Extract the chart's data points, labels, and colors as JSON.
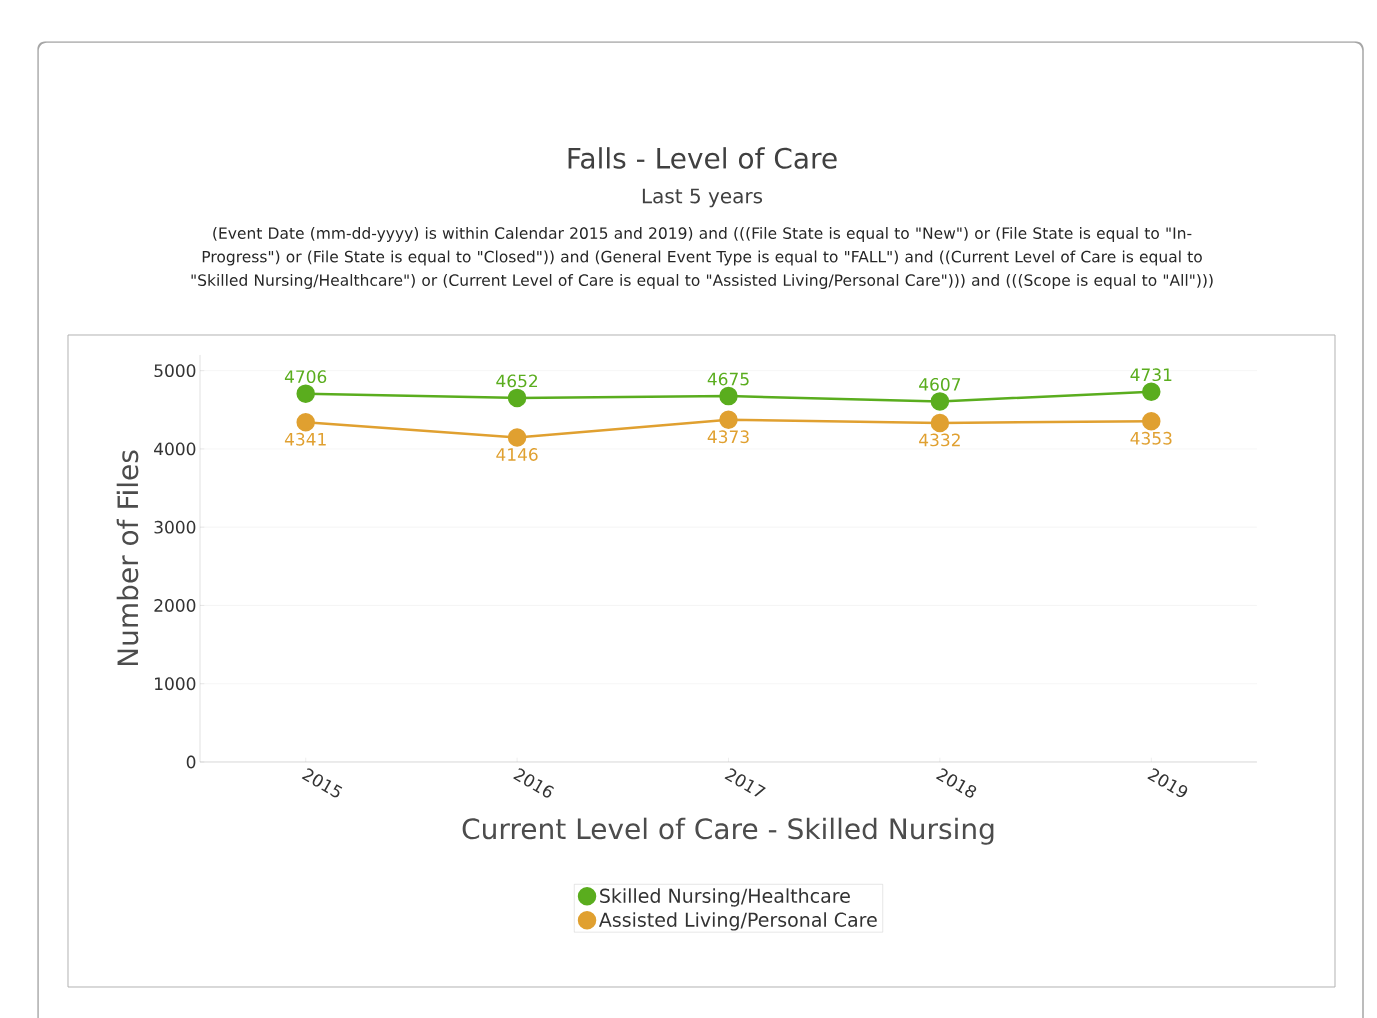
{
  "chart_data": {
    "type": "line",
    "title": "Falls - Level of Care",
    "subtitle": "Last 5 years",
    "annotations": [
      "(Event Date (mm-dd-yyyy) is within Calendar 2015 and 2019) and (((File State is equal to \"New\") or (File State is equal to \"In-Progress\") or (File State is equal to \"Closed\")) and (General Event Type is equal to \"FALL\") and ((Current Level of Care is equal to \"Skilled Nursing/Healthcare\") or (Current Level of Care is equal to \"Assisted Living/Personal Care\"))) and (((Scope is equal to \"All\")))"
    ],
    "xlabel": "Current Level of Care - Skilled Nursing",
    "ylabel": "Number of Files",
    "categories": [
      "2015",
      "2016",
      "2017",
      "2018",
      "2019"
    ],
    "series": [
      {
        "name": "Skilled Nursing/Healthcare",
        "color": "#5aad1e",
        "values": [
          4706,
          4652,
          4675,
          4607,
          4731
        ]
      },
      {
        "name": "Assisted Living/Personal Care",
        "color": "#e0a030",
        "values": [
          4341,
          4146,
          4373,
          4332,
          4353
        ]
      }
    ],
    "ylim": [
      0,
      5200
    ],
    "yticks": [
      0,
      1000,
      2000,
      3000,
      4000,
      5000
    ],
    "grid": "y",
    "legend": "bottom",
    "marker": "circle",
    "line_style": "solid",
    "data_labels": true
  }
}
